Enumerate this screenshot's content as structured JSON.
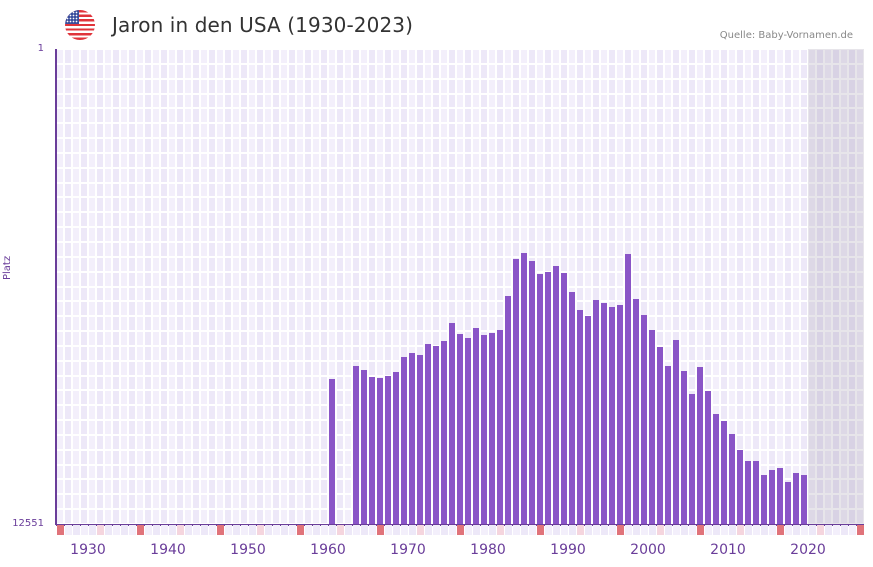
{
  "header": {
    "flag_icon": "us-flag-icon",
    "title": "Jaron in den USA (1930-2023)",
    "source": "Quelle: Baby-Vornamen.de"
  },
  "colors": {
    "bar": "#8a55c7",
    "axis": "#6a3d9a",
    "grid_a": "#ede8f8",
    "grid_b": "#f3effb",
    "marker_decade": "#e0737a",
    "marker_half": "#f5d5de"
  },
  "chart_data": {
    "type": "bar",
    "title": "Jaron in den USA (1930-2023)",
    "xlabel": "",
    "ylabel": "Platz",
    "y_inverted": true,
    "ylim": [
      12551,
      1
    ],
    "yticks": [
      "1",
      "12551"
    ],
    "xticks": [
      "1930",
      "1940",
      "1950",
      "1960",
      "1970",
      "1980",
      "1990",
      "2000",
      "2010",
      "2020"
    ],
    "xrange": [
      1928,
      2028
    ],
    "grid": true,
    "annotation": "Quelle: Baby-Vornamen.de",
    "categories": [
      1962,
      1965,
      1966,
      1967,
      1968,
      1969,
      1970,
      1971,
      1972,
      1973,
      1974,
      1975,
      1976,
      1977,
      1978,
      1979,
      1980,
      1981,
      1982,
      1983,
      1984,
      1985,
      1986,
      1987,
      1988,
      1989,
      1990,
      1991,
      1992,
      1993,
      1994,
      1995,
      1996,
      1997,
      1998,
      1999,
      2000,
      2001,
      2002,
      2003,
      2004,
      2005,
      2006,
      2007,
      2008,
      2009,
      2010,
      2011,
      2012,
      2013,
      2014,
      2015,
      2016,
      2017,
      2018,
      2019,
      2020,
      2021
    ],
    "series": [
      {
        "name": "Platz",
        "values": [
          8727,
          8384,
          8490,
          8675,
          8701,
          8648,
          8543,
          8146,
          8041,
          8093,
          7803,
          7856,
          7724,
          7248,
          7539,
          7645,
          7380,
          7565,
          7512,
          7433,
          6535,
          5557,
          5399,
          5610,
          5953,
          5900,
          5742,
          5927,
          6429,
          6905,
          7063,
          6640,
          6720,
          6825,
          6773,
          5425,
          6614,
          7036,
          7433,
          7882,
          8384,
          7697,
          8516,
          9124,
          8411,
          9045,
          9653,
          9838,
          10181,
          10604,
          10895,
          10895,
          11265,
          11133,
          11080,
          11450,
          11212,
          11265
        ]
      }
    ]
  }
}
